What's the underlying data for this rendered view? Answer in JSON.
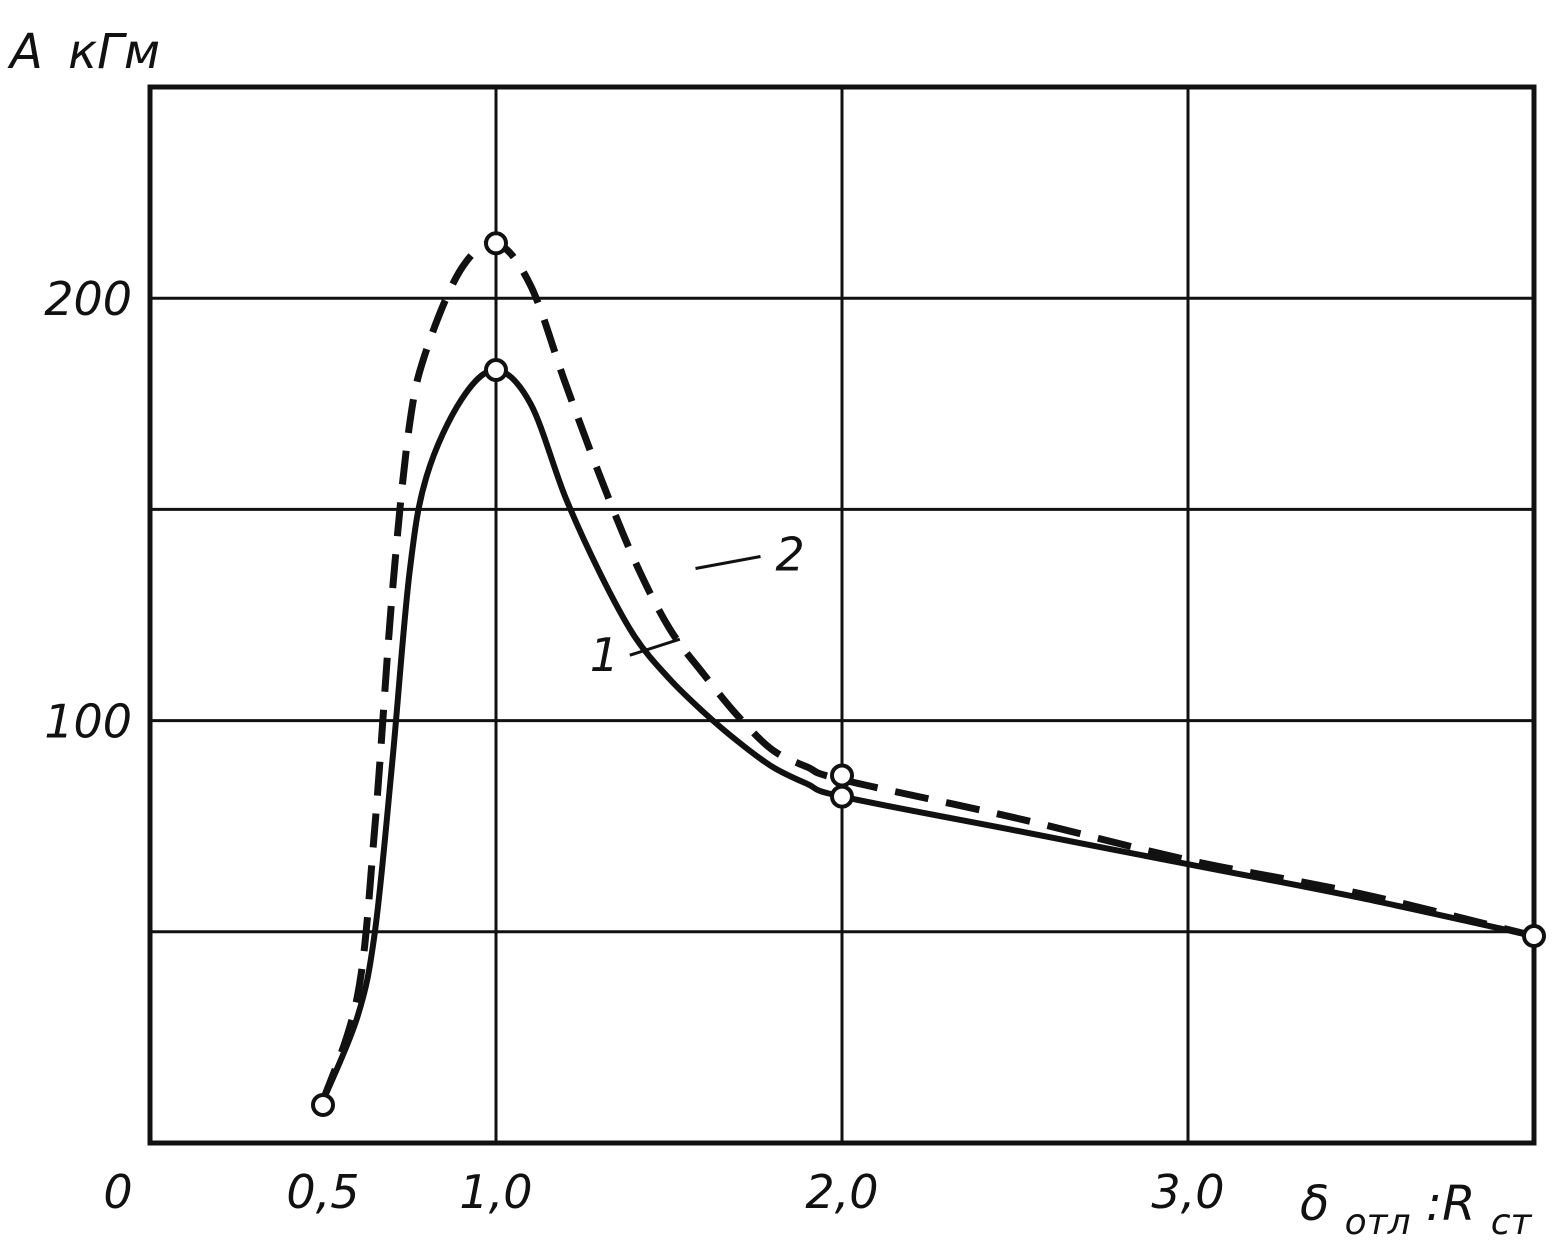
{
  "chart_data": {
    "type": "line",
    "ylabel_main": "A",
    "ylabel_unit": "кГм",
    "xlabel_main": "δ",
    "xlabel_sub1": "отл",
    "xlabel_sep": ":R",
    "xlabel_sub2": "ст",
    "xlim": [
      0,
      4.0
    ],
    "ylim": [
      0,
      250
    ],
    "origin_label": "0",
    "x_ticks": [
      {
        "value": 0.5,
        "label": "0,5"
      },
      {
        "value": 1.0,
        "label": "1,0"
      },
      {
        "value": 2.0,
        "label": "2,0"
      },
      {
        "value": 3.0,
        "label": "3,0"
      }
    ],
    "y_ticks": [
      {
        "value": 100,
        "label": "100"
      },
      {
        "value": 200,
        "label": "200"
      }
    ],
    "x_grid": [
      1.0,
      2.0,
      3.0
    ],
    "y_grid": [
      50,
      100,
      150,
      200
    ],
    "grid": true,
    "series": [
      {
        "name": "1",
        "style": "solid",
        "color": "#111111",
        "points": [
          [
            0.5,
            10
          ],
          [
            0.6,
            30
          ],
          [
            0.65,
            50
          ],
          [
            0.7,
            90
          ],
          [
            0.75,
            135
          ],
          [
            0.8,
            158
          ],
          [
            0.9,
            176
          ],
          [
            1.0,
            183
          ],
          [
            1.1,
            175
          ],
          [
            1.2,
            153
          ],
          [
            1.3,
            135
          ],
          [
            1.4,
            120
          ],
          [
            1.5,
            110
          ],
          [
            1.6,
            102
          ],
          [
            1.7,
            95
          ],
          [
            1.8,
            89
          ],
          [
            1.9,
            85
          ],
          [
            2.0,
            82
          ],
          [
            2.5,
            74
          ],
          [
            3.0,
            66
          ],
          [
            3.5,
            58
          ],
          [
            4.0,
            49
          ]
        ],
        "markers": [
          [
            0.5,
            9
          ],
          [
            1.0,
            183
          ],
          [
            2.0,
            82
          ],
          [
            4.0,
            49
          ]
        ],
        "label_value": [
          1.3,
          115
        ]
      },
      {
        "name": "2",
        "style": "dashed",
        "color": "#111111",
        "points": [
          [
            0.5,
            10
          ],
          [
            0.6,
            35
          ],
          [
            0.65,
            75
          ],
          [
            0.7,
            130
          ],
          [
            0.75,
            170
          ],
          [
            0.8,
            188
          ],
          [
            0.9,
            207
          ],
          [
            1.0,
            213
          ],
          [
            1.1,
            203
          ],
          [
            1.2,
            180
          ],
          [
            1.3,
            158
          ],
          [
            1.4,
            138
          ],
          [
            1.5,
            122
          ],
          [
            1.6,
            111
          ],
          [
            1.7,
            101
          ],
          [
            1.8,
            93
          ],
          [
            1.9,
            89
          ],
          [
            2.0,
            86
          ],
          [
            2.5,
            77
          ],
          [
            3.0,
            67
          ],
          [
            3.5,
            59
          ],
          [
            4.0,
            49
          ]
        ],
        "markers": [
          [
            1.0,
            213
          ],
          [
            2.0,
            87
          ]
        ],
        "label_value": [
          1.75,
          136
        ]
      }
    ]
  }
}
